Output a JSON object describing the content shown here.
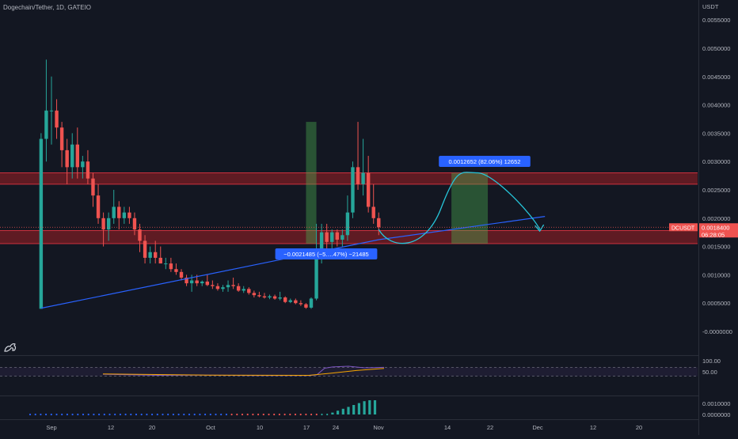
{
  "header": {
    "title": "Dogechain/Tether, 1D, GATEIO"
  },
  "price_axis": {
    "unit": "USDT",
    "ticks": [
      "0.0055000",
      "0.0050000",
      "0.0045000",
      "0.0040000",
      "0.0035000",
      "0.0030000",
      "0.0025000",
      "0.0020000",
      "0.0015000",
      "0.0010000",
      "0.0005000",
      "-0.0000000"
    ],
    "current": {
      "symbol": "DCUSDT",
      "price": "0.0018400",
      "countdown": "06:28:05"
    }
  },
  "time_axis": {
    "ticks": [
      "Sep",
      "12",
      "20",
      "Oct",
      "10",
      "17",
      "24",
      "Nov",
      "14",
      "22",
      "Dec",
      "12",
      "20"
    ]
  },
  "annotations": {
    "measure_down": "−0.0021485 (−5….47%) −21485",
    "measure_up": "0.0012652 (82.06%) 12652"
  },
  "rsi_axis": {
    "ticks": [
      "100.00",
      "50.00"
    ]
  },
  "osc_axis": {
    "ticks": [
      "0.0010000",
      "0.0000000"
    ]
  },
  "colors": {
    "background": "#131722",
    "up": "#26a69a",
    "down": "#ef5350",
    "zone": "#7a1d24",
    "trendline": "#2962ff",
    "projection": "#26c6da",
    "box": "#4caf50",
    "label": "#2962ff"
  },
  "chart_data": {
    "type": "candlestick",
    "title": "Dogechain/Tether, 1D, GATEIO",
    "ylabel": "USDT",
    "ylim": [
      -0.00015,
      0.0057
    ],
    "resistance_zone": [
      0.0026,
      0.0028
    ],
    "support_zone": [
      0.00155,
      0.00178
    ],
    "trendline": [
      {
        "x": "Aug 30",
        "y": 0.00041
      },
      {
        "x": "Nov 3",
        "y": 0.00162
      },
      {
        "x": "Dec 5",
        "y": 0.00203
      }
    ],
    "projected_path": [
      {
        "x": "Nov 3",
        "y": 0.0018
      },
      {
        "x": "Nov 8",
        "y": 0.00155
      },
      {
        "x": "Nov 22",
        "y": 0.0028
      },
      {
        "x": "Dec 4",
        "y": 0.0018
      }
    ],
    "measure_boxes": [
      {
        "from": "Oct 20",
        "to": "Oct 22",
        "low": 0.00155,
        "high": 0.0037
      },
      {
        "from": "Nov 17",
        "to": "Nov 24",
        "low": 0.00155,
        "high": 0.0028
      }
    ],
    "candles": [
      {
        "date": "Aug 30",
        "open": 0.0004,
        "high": 0.0035,
        "low": 0.0004,
        "close": 0.0034
      },
      {
        "date": "Aug 31",
        "open": 0.0034,
        "high": 0.0048,
        "low": 0.003,
        "close": 0.0039
      },
      {
        "date": "Sep 1",
        "open": 0.0039,
        "high": 0.0045,
        "low": 0.0033,
        "close": 0.0039
      },
      {
        "date": "Sep 2",
        "open": 0.0039,
        "high": 0.0041,
        "low": 0.0034,
        "close": 0.0036
      },
      {
        "date": "Sep 3",
        "open": 0.0036,
        "high": 0.0037,
        "low": 0.0029,
        "close": 0.0032
      },
      {
        "date": "Sep 4",
        "open": 0.0032,
        "high": 0.0034,
        "low": 0.0026,
        "close": 0.0029
      },
      {
        "date": "Sep 5",
        "open": 0.0029,
        "high": 0.0035,
        "low": 0.0027,
        "close": 0.0033
      },
      {
        "date": "Sep 6",
        "open": 0.0033,
        "high": 0.0036,
        "low": 0.0027,
        "close": 0.0029
      },
      {
        "date": "Sep 7",
        "open": 0.0029,
        "high": 0.0031,
        "low": 0.0027,
        "close": 0.003
      },
      {
        "date": "Sep 8",
        "open": 0.003,
        "high": 0.0032,
        "low": 0.0026,
        "close": 0.0027
      },
      {
        "date": "Sep 9",
        "open": 0.0027,
        "high": 0.0028,
        "low": 0.0022,
        "close": 0.0024
      },
      {
        "date": "Sep 10",
        "open": 0.0024,
        "high": 0.0026,
        "low": 0.0019,
        "close": 0.002
      },
      {
        "date": "Sep 11",
        "open": 0.002,
        "high": 0.0021,
        "low": 0.0015,
        "close": 0.0018
      },
      {
        "date": "Sep 12",
        "open": 0.0018,
        "high": 0.0021,
        "low": 0.0016,
        "close": 0.002
      },
      {
        "date": "Sep 13",
        "open": 0.002,
        "high": 0.0025,
        "low": 0.0019,
        "close": 0.0022
      },
      {
        "date": "Sep 14",
        "open": 0.0022,
        "high": 0.0023,
        "low": 0.0018,
        "close": 0.002
      },
      {
        "date": "Sep 15",
        "open": 0.002,
        "high": 0.0022,
        "low": 0.0019,
        "close": 0.0021
      },
      {
        "date": "Sep 16",
        "open": 0.0021,
        "high": 0.0022,
        "low": 0.0019,
        "close": 0.002
      },
      {
        "date": "Sep 17",
        "open": 0.002,
        "high": 0.0021,
        "low": 0.0017,
        "close": 0.0018
      },
      {
        "date": "Sep 18",
        "open": 0.0018,
        "high": 0.0019,
        "low": 0.0014,
        "close": 0.0016
      },
      {
        "date": "Sep 19",
        "open": 0.0016,
        "high": 0.0017,
        "low": 0.0012,
        "close": 0.0013
      },
      {
        "date": "Sep 20",
        "open": 0.0013,
        "high": 0.0015,
        "low": 0.0012,
        "close": 0.0014
      },
      {
        "date": "Sep 21",
        "open": 0.0014,
        "high": 0.0016,
        "low": 0.0012,
        "close": 0.0013
      },
      {
        "date": "Sep 22",
        "open": 0.0013,
        "high": 0.0015,
        "low": 0.0012,
        "close": 0.0012
      },
      {
        "date": "Sep 23",
        "open": 0.0012,
        "high": 0.0013,
        "low": 0.0011,
        "close": 0.0012
      },
      {
        "date": "Sep 24",
        "open": 0.0012,
        "high": 0.0013,
        "low": 0.00105,
        "close": 0.0011
      },
      {
        "date": "Sep 25",
        "open": 0.0011,
        "high": 0.0012,
        "low": 0.001,
        "close": 0.00105
      },
      {
        "date": "Sep 26",
        "open": 0.00105,
        "high": 0.0011,
        "low": 0.0009,
        "close": 0.00095
      },
      {
        "date": "Sep 27",
        "open": 0.00095,
        "high": 0.001,
        "low": 0.0008,
        "close": 0.00085
      },
      {
        "date": "Sep 28",
        "open": 0.00085,
        "high": 0.001,
        "low": 0.0007,
        "close": 0.0009
      },
      {
        "date": "Sep 29",
        "open": 0.0009,
        "high": 0.001,
        "low": 0.0008,
        "close": 0.00085
      },
      {
        "date": "Sep 30",
        "open": 0.00085,
        "high": 0.0009,
        "low": 0.0008,
        "close": 0.00088
      },
      {
        "date": "Oct 1",
        "open": 0.00088,
        "high": 0.001,
        "low": 0.0008,
        "close": 0.00082
      },
      {
        "date": "Oct 2",
        "open": 0.00082,
        "high": 0.0009,
        "low": 0.00075,
        "close": 0.0008
      },
      {
        "date": "Oct 3",
        "open": 0.0008,
        "high": 0.00085,
        "low": 0.00072,
        "close": 0.00075
      },
      {
        "date": "Oct 4",
        "open": 0.00075,
        "high": 0.00082,
        "low": 0.0007,
        "close": 0.00078
      },
      {
        "date": "Oct 5",
        "open": 0.00078,
        "high": 0.0009,
        "low": 0.0007,
        "close": 0.00082
      },
      {
        "date": "Oct 6",
        "open": 0.00082,
        "high": 0.00095,
        "low": 0.00075,
        "close": 0.0008
      },
      {
        "date": "Oct 7",
        "open": 0.0008,
        "high": 0.00085,
        "low": 0.0007,
        "close": 0.00072
      },
      {
        "date": "Oct 8",
        "open": 0.00072,
        "high": 0.0008,
        "low": 0.00068,
        "close": 0.00075
      },
      {
        "date": "Oct 9",
        "open": 0.00075,
        "high": 0.00078,
        "low": 0.00065,
        "close": 0.00068
      },
      {
        "date": "Oct 10",
        "open": 0.00068,
        "high": 0.00072,
        "low": 0.0006,
        "close": 0.00064
      },
      {
        "date": "Oct 11",
        "open": 0.00064,
        "high": 0.0007,
        "low": 0.0006,
        "close": 0.00062
      },
      {
        "date": "Oct 12",
        "open": 0.00062,
        "high": 0.00068,
        "low": 0.00058,
        "close": 0.0006
      },
      {
        "date": "Oct 13",
        "open": 0.0006,
        "high": 0.00065,
        "low": 0.00057,
        "close": 0.00062
      },
      {
        "date": "Oct 14",
        "open": 0.00062,
        "high": 0.00065,
        "low": 0.00056,
        "close": 0.00058
      },
      {
        "date": "Oct 15",
        "open": 0.00058,
        "high": 0.0007,
        "low": 0.00055,
        "close": 0.0006
      },
      {
        "date": "Oct 16",
        "open": 0.0006,
        "high": 0.00062,
        "low": 0.0005,
        "close": 0.00052
      },
      {
        "date": "Oct 17",
        "open": 0.00052,
        "high": 0.00058,
        "low": 0.0005,
        "close": 0.00055
      },
      {
        "date": "Oct 18",
        "open": 0.00055,
        "high": 0.00058,
        "low": 0.00048,
        "close": 0.0005
      },
      {
        "date": "Oct 19",
        "open": 0.0005,
        "high": 0.00055,
        "low": 0.00045,
        "close": 0.00048
      },
      {
        "date": "Oct 20",
        "open": 0.00048,
        "high": 0.0005,
        "low": 0.0004,
        "close": 0.00042
      },
      {
        "date": "Oct 21",
        "open": 0.00042,
        "high": 0.0006,
        "low": 0.0004,
        "close": 0.00058
      },
      {
        "date": "Oct 22",
        "open": 0.00058,
        "high": 0.0019,
        "low": 0.00055,
        "close": 0.00145
      },
      {
        "date": "Oct 23",
        "open": 0.00145,
        "high": 0.0019,
        "low": 0.0012,
        "close": 0.00175
      },
      {
        "date": "Oct 24",
        "open": 0.00175,
        "high": 0.0019,
        "low": 0.0013,
        "close": 0.00158
      },
      {
        "date": "Oct 25",
        "open": 0.00158,
        "high": 0.0018,
        "low": 0.0014,
        "close": 0.00175
      },
      {
        "date": "Oct 26",
        "open": 0.00175,
        "high": 0.0018,
        "low": 0.0015,
        "close": 0.00162
      },
      {
        "date": "Oct 27",
        "open": 0.00162,
        "high": 0.0018,
        "low": 0.0015,
        "close": 0.0017
      },
      {
        "date": "Oct 28",
        "open": 0.0017,
        "high": 0.0024,
        "low": 0.0016,
        "close": 0.0021
      },
      {
        "date": "Oct 29",
        "open": 0.0021,
        "high": 0.003,
        "low": 0.002,
        "close": 0.0029
      },
      {
        "date": "Oct 30",
        "open": 0.0029,
        "high": 0.0037,
        "low": 0.0025,
        "close": 0.0026
      },
      {
        "date": "Oct 31",
        "open": 0.0026,
        "high": 0.0034,
        "low": 0.0024,
        "close": 0.0028
      },
      {
        "date": "Nov 1",
        "open": 0.0028,
        "high": 0.0031,
        "low": 0.0021,
        "close": 0.0022
      },
      {
        "date": "Nov 2",
        "open": 0.0022,
        "high": 0.0026,
        "low": 0.0019,
        "close": 0.002
      },
      {
        "date": "Nov 3",
        "open": 0.002,
        "high": 0.0021,
        "low": 0.0017,
        "close": 0.00184
      }
    ],
    "rsi": {
      "ylim": [
        0,
        100
      ],
      "bands": [
        30,
        70
      ]
    },
    "momentum_histogram": {
      "ylim": [
        -0.0002,
        0.0015
      ]
    }
  }
}
